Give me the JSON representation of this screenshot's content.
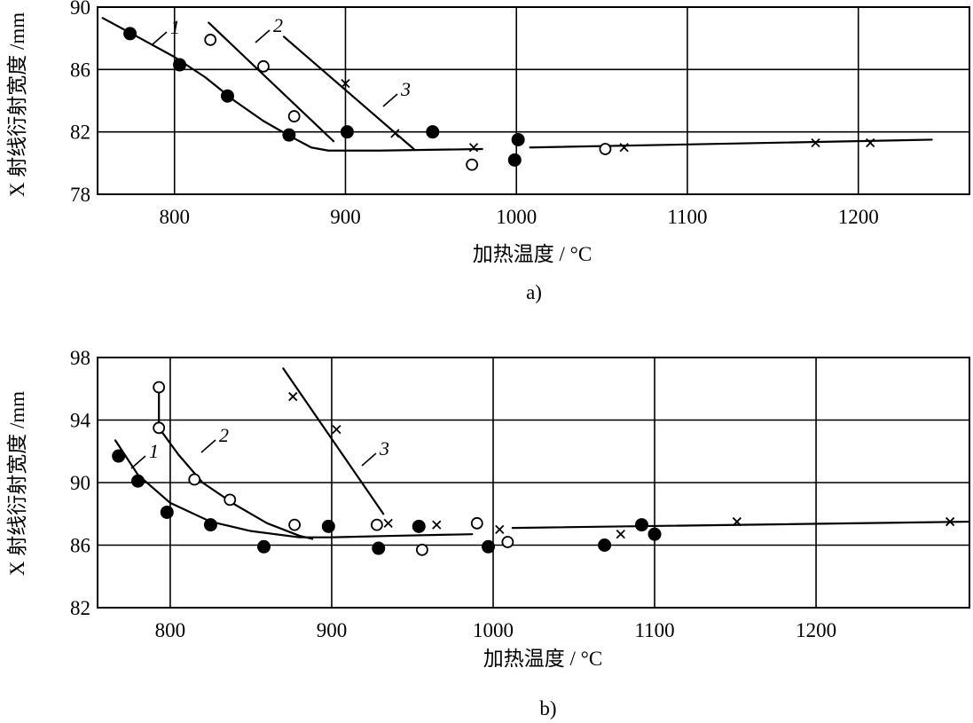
{
  "chart_data": [
    {
      "type": "scatter",
      "caption": "a)",
      "xlabel": "加热温度 / °C",
      "ylabel": "X 射线衍射宽度 /mm",
      "xlim": [
        755,
        1265
      ],
      "ylim": [
        78,
        90
      ],
      "xticks": [
        800,
        900,
        1000,
        1100,
        1200
      ],
      "yticks": [
        78,
        82,
        86,
        90
      ],
      "grid": true,
      "series": [
        {
          "name": "1",
          "marker": "filled-circle",
          "points": [
            [
              774,
              88.3
            ],
            [
              803,
              86.3
            ],
            [
              831,
              84.3
            ],
            [
              867,
              81.8
            ],
            [
              901,
              82.0
            ],
            [
              951,
              82.0
            ],
            [
              1001,
              81.5
            ],
            [
              999,
              80.2
            ]
          ],
          "curve": [
            [
              758,
              89.3
            ],
            [
              780,
              88.0
            ],
            [
              800,
              86.8
            ],
            [
              818,
              85.5
            ],
            [
              835,
              84.0
            ],
            [
              852,
              82.7
            ],
            [
              868,
              81.7
            ],
            [
              880,
              81.0
            ],
            [
              890,
              80.8
            ],
            [
              920,
              80.8
            ],
            [
              980,
              80.9
            ]
          ]
        },
        {
          "name": "2",
          "marker": "open-circle",
          "points": [
            [
              821,
              87.9
            ],
            [
              852,
              86.2
            ],
            [
              870,
              83.0
            ],
            [
              974,
              79.9
            ],
            [
              1052,
              80.9
            ]
          ],
          "curve": [
            [
              820,
              89.0
            ],
            [
              893,
              81.4
            ]
          ]
        },
        {
          "name": "3",
          "marker": "cross",
          "points": [
            [
              900,
              85.1
            ],
            [
              929,
              81.9
            ],
            [
              975,
              81.0
            ],
            [
              1063,
              81.0
            ],
            [
              1175,
              81.3
            ],
            [
              1207,
              81.3
            ]
          ],
          "curve": [
            [
              864,
              88.1
            ],
            [
              940,
              80.9
            ]
          ]
        }
      ],
      "plateau_line": [
        [
          1008,
          81.0
        ],
        [
          1243,
          81.5
        ]
      ]
    },
    {
      "type": "scatter",
      "caption": "b)",
      "xlabel": "加热温度 / °C",
      "ylabel": "X 射线衍射宽度 /mm",
      "xlim": [
        755,
        1295
      ],
      "ylim": [
        82,
        98
      ],
      "xticks": [
        800,
        900,
        1000,
        1100,
        1200
      ],
      "yticks": [
        82,
        86,
        90,
        94,
        98
      ],
      "grid": true,
      "series": [
        {
          "name": "1",
          "marker": "filled-circle",
          "points": [
            [
              768,
              91.7
            ],
            [
              780,
              90.1
            ],
            [
              798,
              88.1
            ],
            [
              825,
              87.3
            ],
            [
              858,
              85.9
            ],
            [
              898,
              87.2
            ],
            [
              929,
              85.8
            ],
            [
              954,
              87.2
            ],
            [
              997,
              85.9
            ],
            [
              1069,
              86.0
            ],
            [
              1092,
              87.3
            ],
            [
              1100,
              86.7
            ]
          ],
          "curve": [
            [
              766,
              92.7
            ],
            [
              780,
              90.5
            ],
            [
              800,
              88.7
            ],
            [
              825,
              87.5
            ],
            [
              850,
              86.9
            ],
            [
              880,
              86.5
            ],
            [
              900,
              86.5
            ],
            [
              940,
              86.6
            ],
            [
              987,
              86.7
            ]
          ]
        },
        {
          "name": "2",
          "marker": "open-circle",
          "points": [
            [
              793,
              96.1
            ],
            [
              793,
              93.5
            ],
            [
              815,
              90.2
            ],
            [
              837,
              88.9
            ],
            [
              877,
              87.3
            ],
            [
              928,
              87.3
            ],
            [
              956,
              85.7
            ],
            [
              990,
              87.4
            ],
            [
              1009,
              86.2
            ]
          ],
          "curve": [
            [
              793,
              93.5
            ],
            [
              805,
              91.8
            ],
            [
              820,
              90.0
            ],
            [
              840,
              88.6
            ],
            [
              860,
              87.4
            ],
            [
              880,
              86.6
            ],
            [
              888,
              86.4
            ]
          ],
          "vertical_segment": [
            [
              793,
              96.1
            ],
            [
              793,
              93.5
            ]
          ]
        },
        {
          "name": "3",
          "marker": "cross",
          "points": [
            [
              876,
              95.5
            ],
            [
              903,
              93.4
            ],
            [
              935,
              87.4
            ],
            [
              965,
              87.3
            ],
            [
              1004,
              87.0
            ],
            [
              1079,
              86.7
            ],
            [
              1151,
              87.5
            ],
            [
              1283,
              87.5
            ]
          ],
          "curve": [
            [
              870,
              97.3
            ],
            [
              932,
              88.0
            ]
          ]
        }
      ],
      "plateau_line": [
        [
          1012,
          87.1
        ],
        [
          1295,
          87.5
        ]
      ]
    }
  ]
}
